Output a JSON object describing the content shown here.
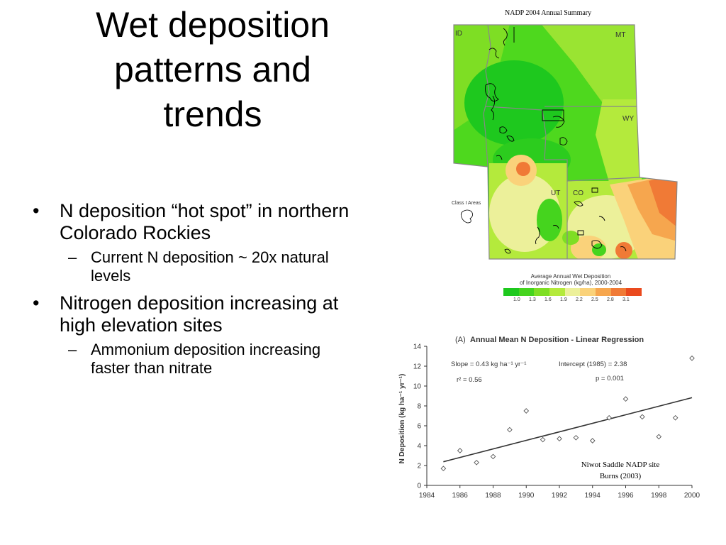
{
  "slide": {
    "title_lines": [
      "Wet deposition",
      "patterns and",
      "trends"
    ],
    "bullets": [
      {
        "text": "N deposition “hot spot” in northern Colorado Rockies",
        "sub": "Current N deposition ~ 20x natural levels"
      },
      {
        "text": "Nitrogen deposition increasing at high elevation sites",
        "sub": "Ammonium deposition increasing faster than nitrate"
      }
    ]
  },
  "map": {
    "source": "NADP 2004 Annual Summary",
    "states": [
      "ID",
      "MT",
      "WY",
      "UT",
      "CO"
    ],
    "class_areas_label": "Class I Areas",
    "legend_title_1": "Average Annual Wet Deposition",
    "legend_title_2": "of Inorganic Nitrogen (kg/ha), 2000-2004",
    "legend_colors": [
      "#1ec81e",
      "#45d41e",
      "#7ede24",
      "#b4ea3c",
      "#ecf09a",
      "#fad27a",
      "#f6a64e",
      "#f07a36",
      "#ea4a1e"
    ],
    "legend_ticks": [
      "1.0",
      "1.3",
      "1.6",
      "1.9",
      "2.2",
      "2.5",
      "2.8",
      "3.1"
    ]
  },
  "chart_data": {
    "type": "scatter",
    "prefix": "(A)",
    "title": "Annual Mean N Deposition - Linear Regression",
    "ylabel": "N Deposition (kg ha⁻¹ yr⁻¹)",
    "xlim": [
      1984,
      2000
    ],
    "ylim": [
      0,
      14
    ],
    "xticks": [
      "1984",
      "1986",
      "1988",
      "1990",
      "1992",
      "1994",
      "1996",
      "1998",
      "2000"
    ],
    "yticks": [
      "0",
      "2",
      "4",
      "6",
      "8",
      "10",
      "12",
      "14"
    ],
    "x": [
      1985,
      1986,
      1987,
      1988,
      1989,
      1990,
      1991,
      1992,
      1993,
      1994,
      1995,
      1996,
      1997,
      1998,
      1999,
      2000
    ],
    "y": [
      1.7,
      3.5,
      2.3,
      2.9,
      5.6,
      7.5,
      4.6,
      4.7,
      4.8,
      4.5,
      6.8,
      8.7,
      6.9,
      4.9,
      6.8,
      12.8
    ],
    "fit": {
      "x": [
        1985,
        2000
      ],
      "y": [
        2.38,
        8.83
      ]
    },
    "annotations": {
      "slope": "Slope = 0.43 kg ha⁻¹ yr⁻¹",
      "intercept": "Intercept (1985) = 2.38",
      "r2": "r² = 0.56",
      "p": "p = 0.001"
    },
    "site_caption_1": "Niwot Saddle NADP site",
    "site_caption_2": "Burns (2003)"
  }
}
